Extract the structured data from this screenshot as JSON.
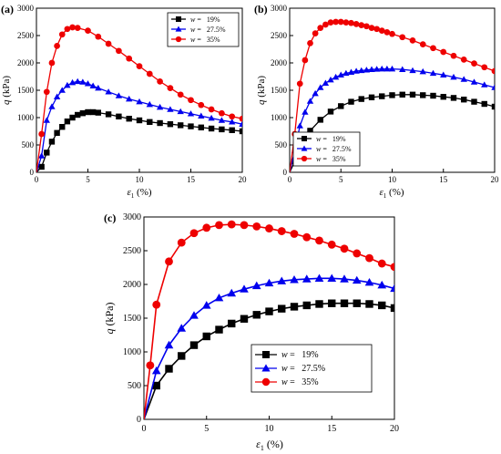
{
  "colors": {
    "w19": "#000000",
    "w275": "#0000ee",
    "w35": "#ee0000"
  },
  "chart_data": [
    {
      "panel": "(a)",
      "type": "line",
      "xlabel_sym": "ε",
      "xlabel_sub": "1",
      "xlabel_unit": " (%)",
      "ylabel_sym": "q",
      "ylabel_unit": " (kPa)",
      "xlim": [
        0,
        20
      ],
      "ylim": [
        0,
        3000
      ],
      "xticks": [
        0,
        5,
        10,
        15,
        20
      ],
      "yticks": [
        0,
        500,
        1000,
        1500,
        2000,
        2500,
        3000
      ],
      "legend_position": "top-right",
      "series": [
        {
          "w_sym": "w",
          "name": " =   19%",
          "marker": "square",
          "color_key": "w19",
          "x": [
            0,
            0.5,
            1,
            1.5,
            2,
            2.5,
            3,
            3.5,
            4,
            4.5,
            5,
            5.5,
            6,
            7,
            8,
            9,
            10,
            11,
            12,
            13,
            14,
            15,
            16,
            17,
            18,
            19,
            20
          ],
          "y": [
            0,
            100,
            360,
            560,
            720,
            830,
            930,
            1000,
            1050,
            1080,
            1100,
            1100,
            1090,
            1060,
            1020,
            980,
            950,
            920,
            900,
            880,
            860,
            840,
            820,
            800,
            785,
            770,
            750
          ]
        },
        {
          "w_sym": "w",
          "name": " =   27.5%",
          "marker": "triangle",
          "color_key": "w275",
          "x": [
            0,
            0.5,
            1,
            1.5,
            2,
            2.5,
            3,
            3.5,
            4,
            4.5,
            5,
            5.5,
            6,
            7,
            8,
            9,
            10,
            11,
            12,
            13,
            14,
            15,
            16,
            17,
            18,
            19,
            20
          ],
          "y": [
            0,
            300,
            950,
            1200,
            1380,
            1500,
            1590,
            1640,
            1660,
            1650,
            1620,
            1580,
            1540,
            1470,
            1400,
            1340,
            1290,
            1240,
            1190,
            1150,
            1110,
            1070,
            1030,
            990,
            950,
            920,
            880
          ]
        },
        {
          "w_sym": "w",
          "name": " =   35%",
          "marker": "circle",
          "color_key": "w35",
          "x": [
            0,
            0.5,
            1,
            1.5,
            2,
            2.5,
            3,
            3.5,
            4,
            5,
            6,
            7,
            8,
            9,
            10,
            11,
            12,
            13,
            14,
            15,
            16,
            17,
            18,
            19,
            20
          ],
          "y": [
            0,
            700,
            1470,
            2000,
            2310,
            2520,
            2620,
            2650,
            2640,
            2590,
            2480,
            2350,
            2220,
            2080,
            1940,
            1800,
            1660,
            1540,
            1420,
            1320,
            1230,
            1150,
            1080,
            1020,
            980
          ]
        }
      ]
    },
    {
      "panel": "(b)",
      "type": "line",
      "xlabel_sym": "ε",
      "xlabel_sub": "1",
      "xlabel_unit": " (%)",
      "ylabel_sym": "q",
      "ylabel_unit": " (kPa)",
      "xlim": [
        0,
        20
      ],
      "ylim": [
        0,
        3000
      ],
      "xticks": [
        0,
        5,
        10,
        15,
        20
      ],
      "yticks": [
        0,
        500,
        1000,
        1500,
        2000,
        2500,
        3000
      ],
      "legend_position": "bottom-left",
      "series": [
        {
          "w_sym": "w",
          "name": " =   19%",
          "marker": "square",
          "color_key": "w19",
          "x": [
            0,
            0.5,
            1,
            2,
            3,
            4,
            5,
            6,
            7,
            8,
            9,
            10,
            11,
            12,
            13,
            14,
            15,
            16,
            17,
            18,
            19,
            20
          ],
          "y": [
            0,
            200,
            490,
            760,
            960,
            1110,
            1210,
            1290,
            1340,
            1370,
            1390,
            1410,
            1420,
            1420,
            1410,
            1400,
            1380,
            1360,
            1330,
            1290,
            1250,
            1200
          ]
        },
        {
          "w_sym": "w",
          "name": " =   27.5%",
          "marker": "triangle",
          "color_key": "w275",
          "x": [
            0,
            0.5,
            1,
            1.5,
            2,
            2.5,
            3,
            3.5,
            4,
            4.5,
            5,
            5.5,
            6,
            6.5,
            7,
            7.5,
            8,
            8.5,
            9,
            9.5,
            10,
            11,
            12,
            13,
            14,
            15,
            16,
            17,
            18,
            19,
            20
          ],
          "y": [
            0,
            400,
            850,
            1100,
            1300,
            1440,
            1550,
            1630,
            1690,
            1740,
            1780,
            1810,
            1830,
            1850,
            1860,
            1870,
            1880,
            1885,
            1890,
            1890,
            1890,
            1880,
            1860,
            1840,
            1810,
            1780,
            1740,
            1700,
            1650,
            1600,
            1550
          ]
        },
        {
          "w_sym": "w",
          "name": " =   35%",
          "marker": "circle",
          "color_key": "w35",
          "x": [
            0,
            0.5,
            1,
            1.5,
            2,
            2.5,
            3,
            3.5,
            4,
            4.5,
            5,
            5.5,
            6,
            6.5,
            7,
            7.5,
            8,
            8.5,
            9,
            9.5,
            10,
            11,
            12,
            13,
            14,
            15,
            16,
            17,
            18,
            19,
            20
          ],
          "y": [
            0,
            700,
            1620,
            2050,
            2360,
            2540,
            2640,
            2700,
            2740,
            2750,
            2750,
            2740,
            2730,
            2710,
            2690,
            2670,
            2640,
            2620,
            2590,
            2560,
            2530,
            2470,
            2410,
            2340,
            2270,
            2200,
            2130,
            2060,
            1990,
            1920,
            1850
          ]
        }
      ]
    },
    {
      "panel": "(c)",
      "type": "line",
      "xlabel_sym": "ε",
      "xlabel_sub": "1",
      "xlabel_unit": " (%)",
      "ylabel_sym": "q",
      "ylabel_unit": " (kPa)",
      "xlim": [
        0,
        20
      ],
      "ylim": [
        0,
        3000
      ],
      "xticks": [
        0,
        5,
        10,
        15,
        20
      ],
      "yticks": [
        0,
        500,
        1000,
        1500,
        2000,
        2500,
        3000
      ],
      "legend_position": "bottom-right",
      "series": [
        {
          "w_sym": "w",
          "name": " =   19%",
          "marker": "square",
          "color_key": "w19",
          "x": [
            0,
            1,
            2,
            3,
            4,
            5,
            6,
            7,
            8,
            9,
            10,
            11,
            12,
            13,
            14,
            15,
            16,
            17,
            18,
            19,
            20
          ],
          "y": [
            0,
            500,
            750,
            940,
            1100,
            1230,
            1330,
            1420,
            1490,
            1550,
            1600,
            1640,
            1670,
            1690,
            1710,
            1720,
            1720,
            1720,
            1710,
            1690,
            1650
          ]
        },
        {
          "w_sym": "w",
          "name": " =   27.5%",
          "marker": "triangle",
          "color_key": "w275",
          "x": [
            0,
            1,
            2,
            3,
            4,
            5,
            6,
            7,
            8,
            9,
            10,
            11,
            12,
            13,
            14,
            15,
            16,
            17,
            18,
            19,
            20
          ],
          "y": [
            0,
            720,
            1100,
            1350,
            1540,
            1690,
            1800,
            1870,
            1930,
            1980,
            2020,
            2050,
            2070,
            2080,
            2090,
            2090,
            2080,
            2060,
            2030,
            1990,
            1940
          ]
        },
        {
          "w_sym": "w",
          "name": " =   35%",
          "marker": "circle",
          "color_key": "w35",
          "x": [
            0,
            0.5,
            1,
            2,
            3,
            4,
            5,
            6,
            7,
            8,
            9,
            10,
            11,
            12,
            13,
            14,
            15,
            16,
            17,
            18,
            19,
            20
          ],
          "y": [
            0,
            800,
            1700,
            2340,
            2620,
            2760,
            2840,
            2880,
            2890,
            2880,
            2860,
            2830,
            2790,
            2750,
            2700,
            2650,
            2590,
            2530,
            2460,
            2390,
            2310,
            2260
          ]
        }
      ]
    }
  ]
}
